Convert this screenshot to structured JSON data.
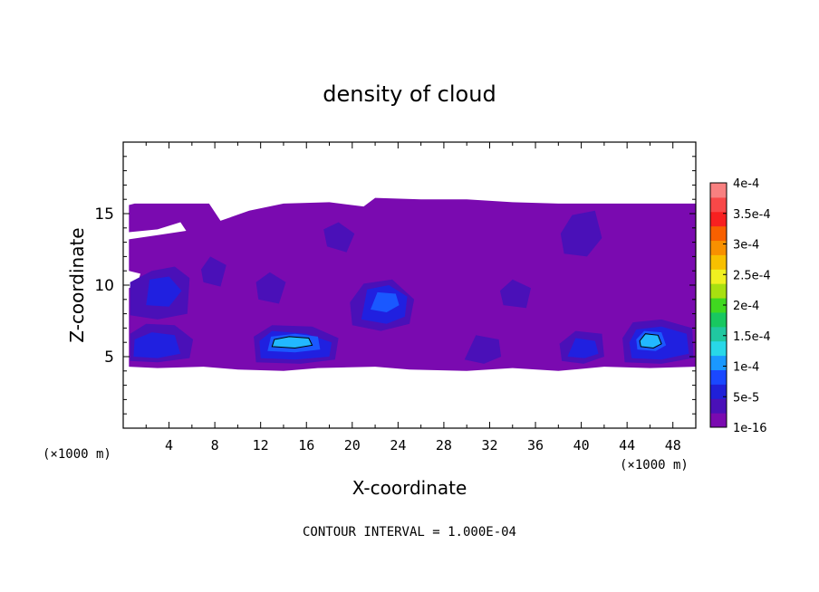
{
  "chart_data": {
    "type": "heatmap",
    "title": "density of cloud",
    "xlabel": "X-coordinate",
    "ylabel": "Z-coordinate",
    "x_unit": "(×1000 m)",
    "y_unit": "(×1000 m)",
    "xlim": [
      0,
      50
    ],
    "ylim": [
      0,
      20
    ],
    "x_ticks": [
      "4",
      "8",
      "12",
      "16",
      "20",
      "24",
      "28",
      "32",
      "36",
      "40",
      "44",
      "48"
    ],
    "x_tick_values": [
      4,
      8,
      12,
      16,
      20,
      24,
      28,
      32,
      36,
      40,
      44,
      48
    ],
    "y_ticks": [
      "5",
      "10",
      "15"
    ],
    "y_tick_values": [
      5,
      10,
      15
    ],
    "footer": "CONTOUR INTERVAL = 1.000E-04",
    "colorbar": {
      "labels": [
        "1e-16",
        "5e-5",
        "1e-4",
        "1.5e-4",
        "2e-4",
        "2.5e-4",
        "3e-4",
        "3.5e-4",
        "4e-4"
      ],
      "levels": [
        1e-16,
        5e-05,
        0.0001,
        0.00015,
        0.0002,
        0.00025,
        0.0003,
        0.00035,
        0.0004
      ],
      "colors": [
        "#7a0ab0",
        "#4a10b8",
        "#2020d8",
        "#1a48ff",
        "#1a98ff",
        "#28d8e8",
        "#20c8a0",
        "#18c860",
        "#40d820",
        "#a8e010",
        "#f0f020",
        "#f8c000",
        "#f89000",
        "#f86000",
        "#f82020",
        "#f84848",
        "#f88080"
      ]
    },
    "regions": [
      {
        "level": 0,
        "polygon": [
          [
            0.5,
            4.3
          ],
          [
            3,
            4.2
          ],
          [
            7,
            4.3
          ],
          [
            10,
            4.1
          ],
          [
            14,
            4.0
          ],
          [
            17,
            4.2
          ],
          [
            22,
            4.3
          ],
          [
            25,
            4.1
          ],
          [
            30,
            4.0
          ],
          [
            34,
            4.2
          ],
          [
            38,
            4.0
          ],
          [
            42,
            4.3
          ],
          [
            46,
            4.2
          ],
          [
            50,
            4.3
          ],
          [
            50,
            15.7
          ],
          [
            46,
            15.7
          ],
          [
            42,
            15.7
          ],
          [
            38,
            15.7
          ],
          [
            34,
            15.8
          ],
          [
            30,
            16.0
          ],
          [
            26,
            16.0
          ],
          [
            22,
            16.1
          ],
          [
            21,
            15.5
          ],
          [
            18,
            15.8
          ],
          [
            14,
            15.7
          ],
          [
            11,
            15.2
          ],
          [
            8.5,
            14.5
          ],
          [
            7.5,
            15.7
          ],
          [
            4,
            15.7
          ],
          [
            1,
            15.7
          ],
          [
            0.5,
            15.6
          ],
          [
            0.5,
            13.7
          ],
          [
            3,
            13.9
          ],
          [
            5,
            14.4
          ],
          [
            5.5,
            13.8
          ],
          [
            3,
            13.5
          ],
          [
            0.5,
            13.2
          ],
          [
            0.5,
            11.0
          ],
          [
            1.5,
            10.8
          ],
          [
            1.2,
            10.0
          ],
          [
            0.5,
            9.8
          ],
          [
            0.5,
            7.8
          ],
          [
            0.5,
            6.0
          ]
        ]
      },
      {
        "level": 1,
        "polygon": [
          [
            0.6,
            7.9
          ],
          [
            3.0,
            7.6
          ],
          [
            5.6,
            8.0
          ],
          [
            5.8,
            10.5
          ],
          [
            4.5,
            11.3
          ],
          [
            2.5,
            11.0
          ],
          [
            0.6,
            10.2
          ]
        ]
      },
      {
        "level": 1,
        "polygon": [
          [
            0.6,
            4.7
          ],
          [
            3.0,
            4.6
          ],
          [
            5.8,
            4.9
          ],
          [
            6.1,
            6.2
          ],
          [
            4.5,
            7.2
          ],
          [
            2.0,
            7.3
          ],
          [
            0.6,
            6.6
          ]
        ]
      },
      {
        "level": 1,
        "polygon": [
          [
            11.6,
            4.6
          ],
          [
            15.5,
            4.5
          ],
          [
            18.5,
            4.8
          ],
          [
            18.8,
            6.3
          ],
          [
            16.5,
            7.1
          ],
          [
            13.0,
            7.2
          ],
          [
            11.4,
            6.4
          ]
        ]
      },
      {
        "level": 1,
        "polygon": [
          [
            20.0,
            7.2
          ],
          [
            22.5,
            6.8
          ],
          [
            25.0,
            7.3
          ],
          [
            25.4,
            9.0
          ],
          [
            23.5,
            10.4
          ],
          [
            21.0,
            10.1
          ],
          [
            19.8,
            8.8
          ]
        ]
      },
      {
        "level": 1,
        "polygon": [
          [
            17.8,
            12.7
          ],
          [
            19.5,
            12.3
          ],
          [
            20.2,
            13.6
          ],
          [
            18.8,
            14.4
          ],
          [
            17.5,
            13.9
          ]
        ]
      },
      {
        "level": 1,
        "polygon": [
          [
            29.8,
            4.8
          ],
          [
            31.5,
            4.5
          ],
          [
            33.0,
            5.0
          ],
          [
            32.8,
            6.2
          ],
          [
            30.8,
            6.5
          ]
        ]
      },
      {
        "level": 1,
        "polygon": [
          [
            38.3,
            4.7
          ],
          [
            40.2,
            4.5
          ],
          [
            42.0,
            5.0
          ],
          [
            41.8,
            6.6
          ],
          [
            39.5,
            6.8
          ],
          [
            38.1,
            5.9
          ]
        ]
      },
      {
        "level": 1,
        "polygon": [
          [
            43.8,
            4.6
          ],
          [
            47.0,
            4.5
          ],
          [
            49.8,
            4.9
          ],
          [
            49.7,
            7.0
          ],
          [
            47.0,
            7.6
          ],
          [
            44.5,
            7.4
          ],
          [
            43.6,
            6.3
          ]
        ]
      },
      {
        "level": 1,
        "polygon": [
          [
            38.5,
            12.2
          ],
          [
            40.5,
            12.0
          ],
          [
            41.8,
            13.3
          ],
          [
            41.2,
            15.2
          ],
          [
            39.2,
            14.9
          ],
          [
            38.2,
            13.6
          ]
        ]
      },
      {
        "level": 1,
        "polygon": [
          [
            33.2,
            8.6
          ],
          [
            35.2,
            8.4
          ],
          [
            35.6,
            9.8
          ],
          [
            34.0,
            10.4
          ],
          [
            32.9,
            9.6
          ]
        ]
      },
      {
        "level": 1,
        "polygon": [
          [
            11.8,
            9.0
          ],
          [
            13.6,
            8.7
          ],
          [
            14.2,
            10.2
          ],
          [
            12.8,
            10.9
          ],
          [
            11.6,
            10.2
          ]
        ]
      },
      {
        "level": 1,
        "polygon": [
          [
            7.0,
            10.2
          ],
          [
            8.5,
            9.9
          ],
          [
            9.0,
            11.4
          ],
          [
            7.6,
            12.0
          ],
          [
            6.8,
            11.1
          ]
        ]
      },
      {
        "level": 2,
        "polygon": [
          [
            2.0,
            8.6
          ],
          [
            4.0,
            8.5
          ],
          [
            5.1,
            9.6
          ],
          [
            4.0,
            10.6
          ],
          [
            2.3,
            10.4
          ]
        ]
      },
      {
        "level": 2,
        "polygon": [
          [
            0.9,
            5.0
          ],
          [
            3.0,
            4.9
          ],
          [
            5.0,
            5.2
          ],
          [
            4.5,
            6.5
          ],
          [
            2.5,
            6.7
          ],
          [
            1.0,
            6.2
          ]
        ]
      },
      {
        "level": 2,
        "polygon": [
          [
            12.0,
            4.9
          ],
          [
            15.0,
            4.8
          ],
          [
            18.0,
            5.0
          ],
          [
            18.2,
            6.0
          ],
          [
            16.0,
            6.6
          ],
          [
            13.0,
            6.8
          ],
          [
            11.9,
            6.1
          ]
        ]
      },
      {
        "level": 2,
        "polygon": [
          [
            20.8,
            7.6
          ],
          [
            23.0,
            7.3
          ],
          [
            24.6,
            7.8
          ],
          [
            24.8,
            9.2
          ],
          [
            23.2,
            10.0
          ],
          [
            21.3,
            9.7
          ]
        ]
      },
      {
        "level": 2,
        "polygon": [
          [
            44.4,
            4.9
          ],
          [
            47.0,
            4.8
          ],
          [
            49.4,
            5.2
          ],
          [
            49.2,
            6.6
          ],
          [
            47.0,
            7.1
          ],
          [
            44.8,
            6.9
          ],
          [
            44.2,
            6.0
          ]
        ]
      },
      {
        "level": 2,
        "polygon": [
          [
            38.8,
            5.0
          ],
          [
            40.3,
            4.9
          ],
          [
            41.5,
            5.2
          ],
          [
            41.2,
            6.1
          ],
          [
            39.5,
            6.3
          ]
        ]
      },
      {
        "level": 3,
        "polygon": [
          [
            12.6,
            5.4
          ],
          [
            15.0,
            5.3
          ],
          [
            17.2,
            5.5
          ],
          [
            17.0,
            6.4
          ],
          [
            15.0,
            6.6
          ],
          [
            12.9,
            6.4
          ]
        ]
      },
      {
        "level": 3,
        "polygon": [
          [
            44.9,
            5.5
          ],
          [
            46.5,
            5.4
          ],
          [
            47.4,
            5.8
          ],
          [
            47.0,
            6.7
          ],
          [
            45.5,
            6.8
          ],
          [
            44.8,
            6.2
          ]
        ]
      },
      {
        "level": 3,
        "polygon": [
          [
            21.6,
            8.3
          ],
          [
            23.0,
            8.1
          ],
          [
            24.1,
            8.6
          ],
          [
            23.8,
            9.4
          ],
          [
            22.2,
            9.5
          ]
        ]
      },
      {
        "level": 4,
        "polygon": [
          [
            13.0,
            5.7
          ],
          [
            15.0,
            5.6
          ],
          [
            16.5,
            5.8
          ],
          [
            16.2,
            6.3
          ],
          [
            14.5,
            6.4
          ],
          [
            13.2,
            6.2
          ]
        ]
      },
      {
        "level": 4,
        "polygon": [
          [
            45.2,
            5.7
          ],
          [
            46.3,
            5.6
          ],
          [
            47.0,
            5.9
          ],
          [
            46.7,
            6.5
          ],
          [
            45.6,
            6.6
          ],
          [
            45.1,
            6.1
          ]
        ]
      }
    ],
    "contour_lines": [
      {
        "value": 0.0001,
        "polygon": [
          [
            13.0,
            5.7
          ],
          [
            15.0,
            5.6
          ],
          [
            16.5,
            5.8
          ],
          [
            16.2,
            6.3
          ],
          [
            14.5,
            6.4
          ],
          [
            13.2,
            6.2
          ]
        ]
      },
      {
        "value": 0.0001,
        "polygon": [
          [
            45.2,
            5.7
          ],
          [
            46.3,
            5.6
          ],
          [
            47.0,
            5.9
          ],
          [
            46.7,
            6.5
          ],
          [
            45.6,
            6.6
          ],
          [
            45.1,
            6.1
          ]
        ]
      }
    ],
    "level_colors": [
      "#7a0ab0",
      "#4a10b8",
      "#2020e0",
      "#1a58ff",
      "#22b8ff"
    ]
  }
}
